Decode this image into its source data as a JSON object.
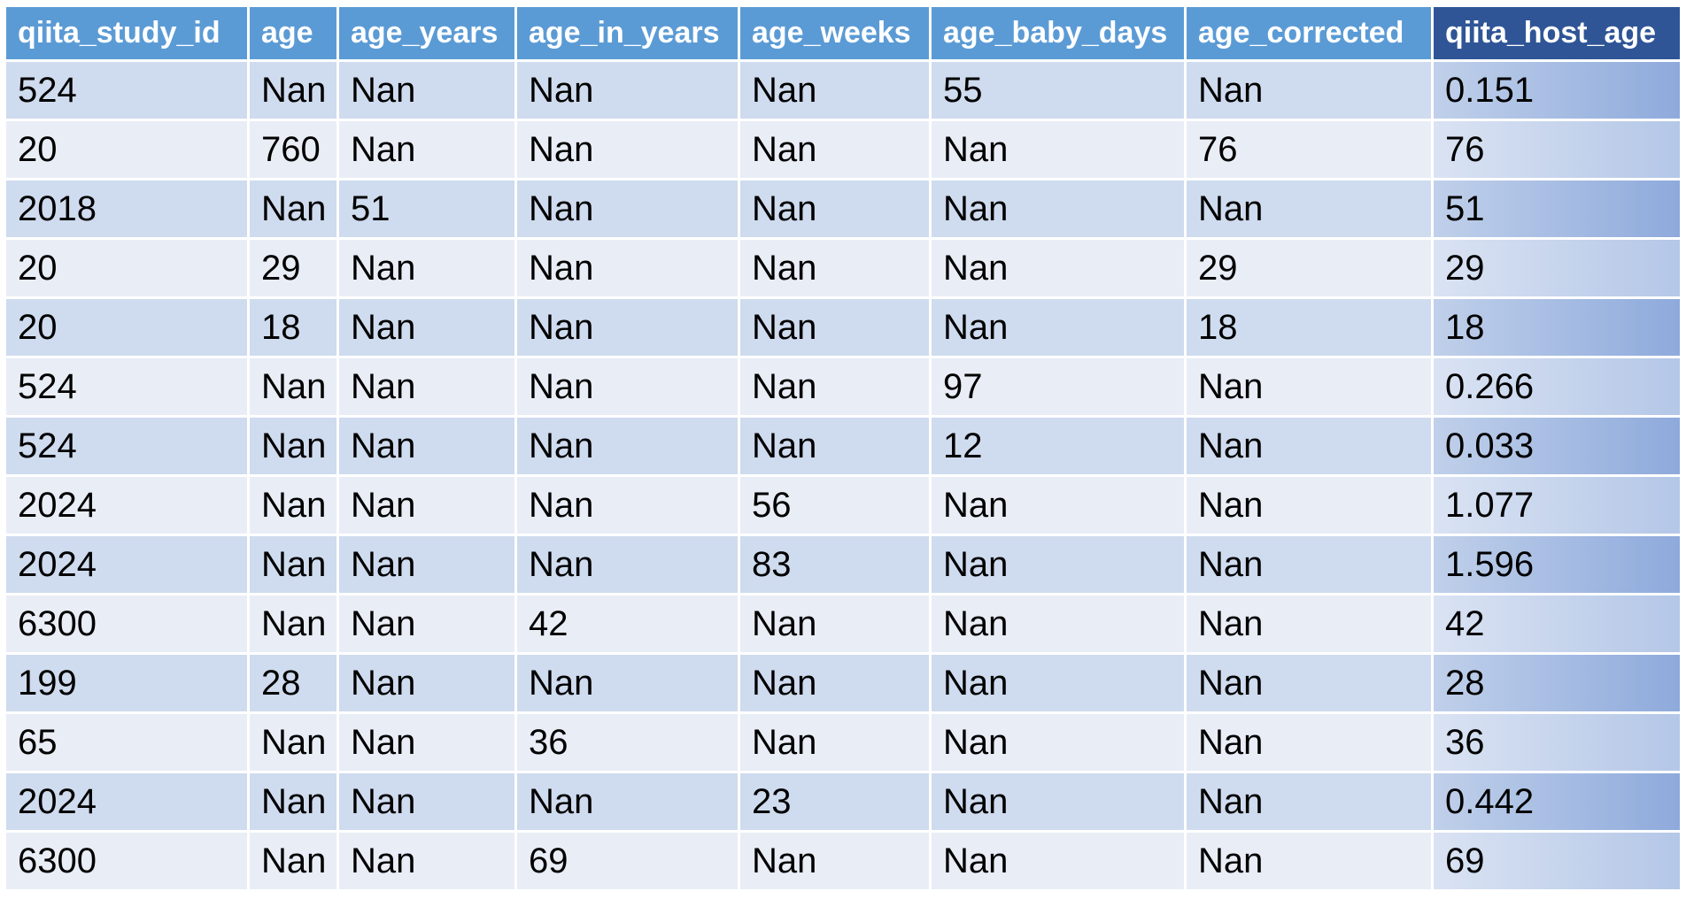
{
  "table": {
    "columns": [
      "qiita_study_id",
      "age",
      "age_years",
      "age_in_years",
      "age_weeks",
      "age_baby_days",
      "age_corrected",
      "qiita_host_age"
    ],
    "rows": [
      [
        "524",
        "Nan",
        "Nan",
        "Nan",
        "Nan",
        "55",
        "Nan",
        "0.151"
      ],
      [
        "20",
        "760",
        "Nan",
        "Nan",
        "Nan",
        "Nan",
        "76",
        "76"
      ],
      [
        "2018",
        "Nan",
        "51",
        "Nan",
        "Nan",
        "Nan",
        "Nan",
        "51"
      ],
      [
        "20",
        "29",
        "Nan",
        "Nan",
        "Nan",
        "Nan",
        "29",
        "29"
      ],
      [
        "20",
        "18",
        "Nan",
        "Nan",
        "Nan",
        "Nan",
        "18",
        "18"
      ],
      [
        "524",
        "Nan",
        "Nan",
        "Nan",
        "Nan",
        "97",
        "Nan",
        "0.266"
      ],
      [
        "524",
        "Nan",
        "Nan",
        "Nan",
        "Nan",
        "12",
        "Nan",
        "0.033"
      ],
      [
        "2024",
        "Nan",
        "Nan",
        "Nan",
        "56",
        "Nan",
        "Nan",
        "1.077"
      ],
      [
        "2024",
        "Nan",
        "Nan",
        "Nan",
        "83",
        "Nan",
        "Nan",
        "1.596"
      ],
      [
        "6300",
        "Nan",
        "Nan",
        "42",
        "Nan",
        "Nan",
        "Nan",
        "42"
      ],
      [
        "199",
        "28",
        "Nan",
        "Nan",
        "Nan",
        "Nan",
        "Nan",
        "28"
      ],
      [
        "65",
        "Nan",
        "Nan",
        "36",
        "Nan",
        "Nan",
        "Nan",
        "36"
      ],
      [
        "2024",
        "Nan",
        "Nan",
        "Nan",
        "23",
        "Nan",
        "Nan",
        "0.442"
      ],
      [
        "6300",
        "Nan",
        "Nan",
        "69",
        "Nan",
        "Nan",
        "Nan",
        "69"
      ]
    ]
  },
  "colors": {
    "header": "#5b9bd5",
    "header_highlight": "#2f5597",
    "row_band_dark": "#cfdbee",
    "row_band_light": "#e9edf6",
    "highlight_column_dark": "#8eaadc",
    "highlight_column_light": "#b4c7e7"
  }
}
